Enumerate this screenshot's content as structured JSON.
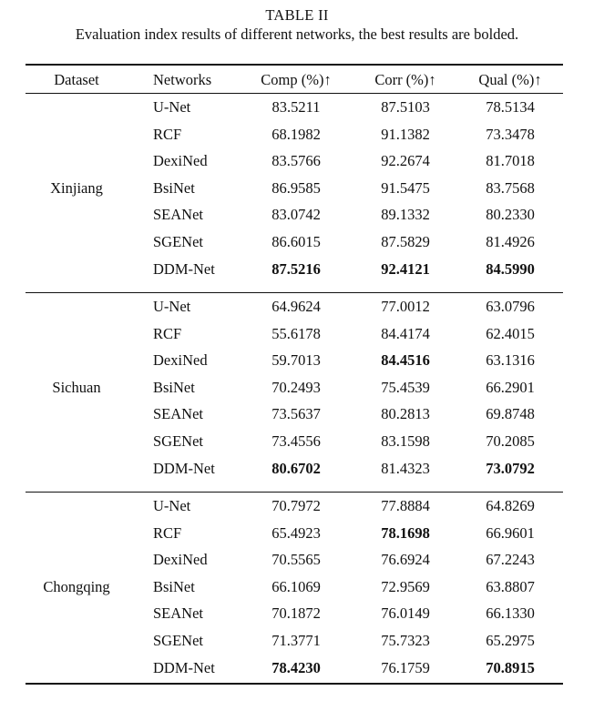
{
  "table": {
    "label": "TABLE II",
    "caption": "Evaluation index results of different networks, the best results are bolded.",
    "headers": [
      "Dataset",
      "Networks",
      "Comp (%)↑",
      "Corr (%)↑",
      "Qual (%)↑"
    ],
    "groups": [
      {
        "dataset": "Xinjiang",
        "rows": [
          {
            "network": "U-Net",
            "comp": "83.5211",
            "corr": "87.5103",
            "qual": "78.5134"
          },
          {
            "network": "RCF",
            "comp": "68.1982",
            "corr": "91.1382",
            "qual": "73.3478"
          },
          {
            "network": "DexiNed",
            "comp": "83.5766",
            "corr": "92.2674",
            "qual": "81.7018"
          },
          {
            "network": "BsiNet",
            "comp": "86.9585",
            "corr": "91.5475",
            "qual": "83.7568"
          },
          {
            "network": "SEANet",
            "comp": "83.0742",
            "corr": "89.1332",
            "qual": "80.2330"
          },
          {
            "network": "SGENet",
            "comp": "86.6015",
            "corr": "87.5829",
            "qual": "81.4926"
          },
          {
            "network": "DDM-Net",
            "comp": "87.5216",
            "corr": "92.4121",
            "qual": "84.5990"
          }
        ],
        "bold": {
          "comp": 6,
          "corr": 6,
          "qual": 6
        }
      },
      {
        "dataset": "Sichuan",
        "rows": [
          {
            "network": "U-Net",
            "comp": "64.9624",
            "corr": "77.0012",
            "qual": "63.0796"
          },
          {
            "network": "RCF",
            "comp": "55.6178",
            "corr": "84.4174",
            "qual": "62.4015"
          },
          {
            "network": "DexiNed",
            "comp": "59.7013",
            "corr": "84.4516",
            "qual": "63.1316"
          },
          {
            "network": "BsiNet",
            "comp": "70.2493",
            "corr": "75.4539",
            "qual": "66.2901"
          },
          {
            "network": "SEANet",
            "comp": "73.5637",
            "corr": "80.2813",
            "qual": "69.8748"
          },
          {
            "network": "SGENet",
            "comp": "73.4556",
            "corr": "83.1598",
            "qual": "70.2085"
          },
          {
            "network": "DDM-Net",
            "comp": "80.6702",
            "corr": "81.4323",
            "qual": "73.0792"
          }
        ],
        "bold": {
          "comp": 6,
          "corr": 2,
          "qual": 6
        }
      },
      {
        "dataset": "Chongqing",
        "rows": [
          {
            "network": "U-Net",
            "comp": "70.7972",
            "corr": "77.8884",
            "qual": "64.8269"
          },
          {
            "network": "RCF",
            "comp": "65.4923",
            "corr": "78.1698",
            "qual": "66.9601"
          },
          {
            "network": "DexiNed",
            "comp": "70.5565",
            "corr": "76.6924",
            "qual": "67.2243"
          },
          {
            "network": "BsiNet",
            "comp": "66.1069",
            "corr": "72.9569",
            "qual": "63.8807"
          },
          {
            "network": "SEANet",
            "comp": "70.1872",
            "corr": "76.0149",
            "qual": "66.1330"
          },
          {
            "network": "SGENet",
            "comp": "71.3771",
            "corr": "75.7323",
            "qual": "65.2975"
          },
          {
            "network": "DDM-Net",
            "comp": "78.4230",
            "corr": "76.1759",
            "qual": "70.8915"
          }
        ],
        "bold": {
          "comp": 6,
          "corr": 1,
          "qual": 6
        }
      }
    ]
  }
}
